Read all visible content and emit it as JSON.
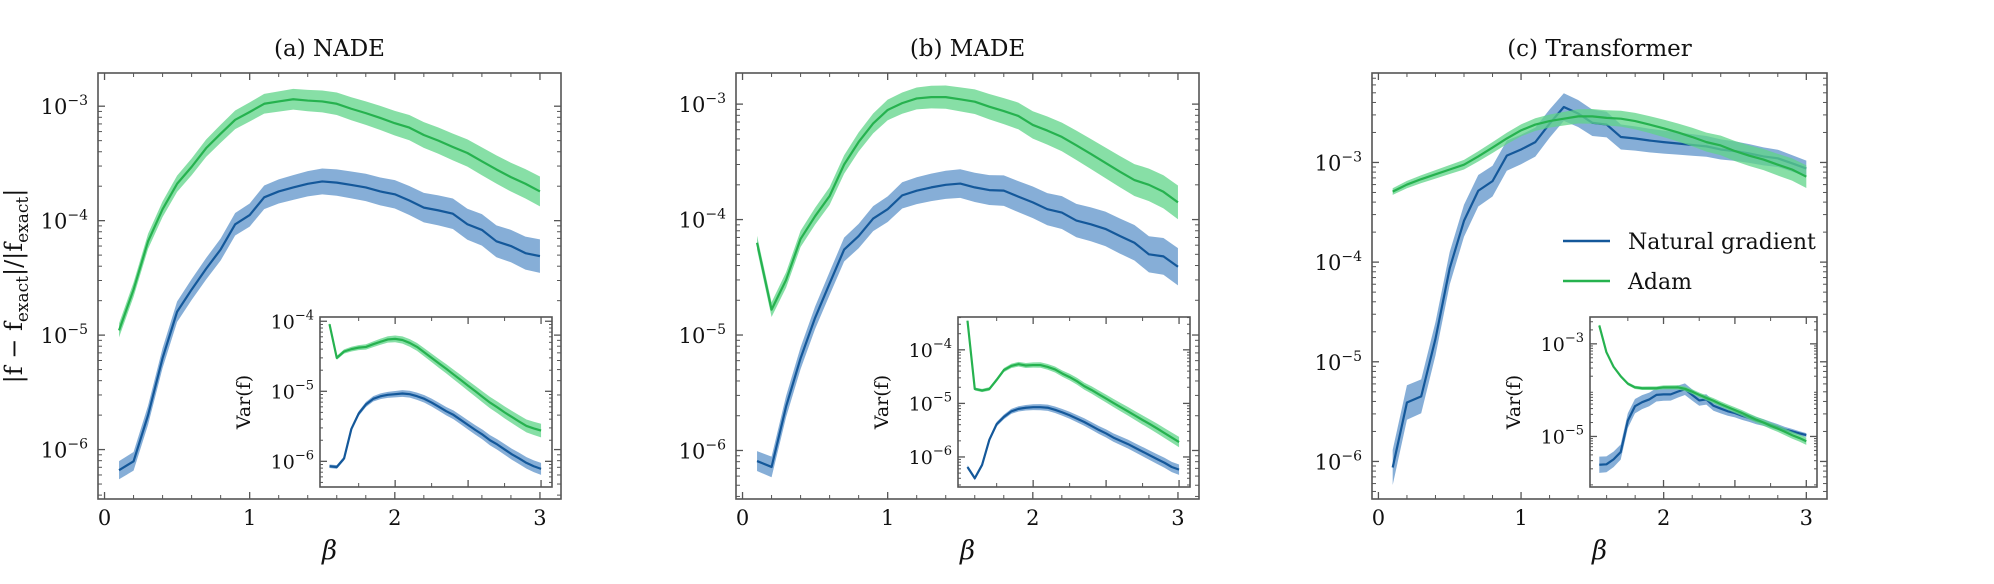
{
  "chart_data": [
    {
      "type": "line",
      "title": "(a) NADE",
      "xlabel": "β",
      "ylabel": "|f − f_exact|/|f_exact|",
      "yscale": "log",
      "xlim": [
        -0.045,
        3.145
      ],
      "ylim": [
        3.7e-07,
        0.00195
      ],
      "xticks": [
        0,
        1,
        2,
        3
      ],
      "yticks": [
        1e-06,
        1e-05,
        0.0001,
        0.001
      ],
      "yticklabels": [
        {
          "base": "10",
          "exp": "−6"
        },
        {
          "base": "10",
          "exp": "−5"
        },
        {
          "base": "10",
          "exp": "−4"
        },
        {
          "base": "10",
          "exp": "−3"
        }
      ],
      "x": [
        0.1,
        0.2,
        0.3,
        0.4,
        0.5,
        0.6,
        0.7,
        0.8,
        0.9,
        1.0,
        1.1,
        1.2,
        1.3,
        1.4,
        1.5,
        1.6,
        1.7,
        1.8,
        1.9,
        2.0,
        2.1,
        2.2,
        2.3,
        2.4,
        2.5,
        2.6,
        2.7,
        2.8,
        2.9,
        3.0
      ],
      "series": [
        {
          "key": "ng",
          "values": [
            6.6e-07,
            7.9e-07,
            2e-06,
            6.3e-06,
            1.6e-05,
            2.5e-05,
            3.8e-05,
            5.6e-05,
            9.3e-05,
            0.000112,
            0.00016,
            0.00018,
            0.000195,
            0.00021,
            0.00022,
            0.000215,
            0.000205,
            0.000195,
            0.00018,
            0.00017,
            0.00015,
            0.00013,
            0.000123,
            0.000115,
            9.3e-05,
            8.3e-05,
            6.6e-05,
            6e-05,
            5.2e-05,
            4.9e-05
          ],
          "band_factor": [
            1.2,
            1.4
          ]
        },
        {
          "key": "adam",
          "values": [
            1.1e-05,
            2.5e-05,
            6.6e-05,
            0.000126,
            0.00021,
            0.000295,
            0.00043,
            0.000575,
            0.00076,
            0.00089,
            0.00105,
            0.0011,
            0.00115,
            0.00112,
            0.0011,
            0.00105,
            0.00095,
            0.00087,
            0.00079,
            0.00071,
            0.00065,
            0.00056,
            0.0005,
            0.00044,
            0.00039,
            0.00033,
            0.00028,
            0.00024,
            0.00021,
            0.00018
          ],
          "band_factor": [
            1.15,
            1.35
          ]
        }
      ],
      "inset": {
        "ylabel": "Var(f)",
        "yscale": "log",
        "xlim": [
          -0.03,
          3.15
        ],
        "ylim": [
          4.3e-07,
          0.000115
        ],
        "xticks_major": [
          1,
          2,
          3
        ],
        "xticks_minor": [
          0.5,
          1.5,
          2.5
        ],
        "yticks": [
          1e-06,
          1e-05,
          0.0001
        ],
        "yticklabels": [
          {
            "base": "10",
            "exp": "−6"
          },
          {
            "base": "10",
            "exp": "−5"
          },
          {
            "base": "10",
            "exp": "−4"
          }
        ],
        "series": [
          {
            "key": "ng",
            "values": [
              8.5e-07,
              8.3e-07,
              1.1e-06,
              2.9e-06,
              4.8e-06,
              6.5e-06,
              7.8e-06,
              8.5e-06,
              8.9e-06,
              9.1e-06,
              9.3e-06,
              9.1e-06,
              8.5e-06,
              7.8e-06,
              6.9e-06,
              6e-06,
              5.2e-06,
              4.6e-06,
              3.9e-06,
              3.3e-06,
              2.8e-06,
              2.4e-06,
              2e-06,
              1.74e-06,
              1.48e-06,
              1.26e-06,
              1.1e-06,
              9.5e-07,
              8.5e-07,
              7.8e-07
            ],
            "band_factor": [
              1.06,
              1.22
            ]
          },
          {
            "key": "adam",
            "values": [
              9.1e-05,
              3e-05,
              3.7e-05,
              4e-05,
              4.2e-05,
              4.3e-05,
              4.7e-05,
              5.1e-05,
              5.5e-05,
              5.6e-05,
              5.4e-05,
              4.9e-05,
              4.3e-05,
              3.6e-05,
              3e-05,
              2.5e-05,
              2.1e-05,
              1.74e-05,
              1.45e-05,
              1.2e-05,
              1e-05,
              8.3e-06,
              6.9e-06,
              5.9e-06,
              5e-06,
              4.3e-06,
              3.7e-06,
              3.2e-06,
              2.95e-06,
              2.75e-06
            ],
            "band_factor": [
              1.06,
              1.25
            ]
          }
        ]
      }
    },
    {
      "type": "line",
      "title": "(b) MADE",
      "xlabel": "β",
      "yscale": "log",
      "xlim": [
        -0.045,
        3.145
      ],
      "ylim": [
        3.8e-07,
        0.00186
      ],
      "xticks": [
        0,
        1,
        2,
        3
      ],
      "yticks": [
        1e-06,
        1e-05,
        0.0001,
        0.001
      ],
      "yticklabels": [
        {
          "base": "10",
          "exp": "−6"
        },
        {
          "base": "10",
          "exp": "−5"
        },
        {
          "base": "10",
          "exp": "−4"
        },
        {
          "base": "10",
          "exp": "−3"
        }
      ],
      "x": [
        0.1,
        0.2,
        0.3,
        0.4,
        0.5,
        0.6,
        0.7,
        0.8,
        0.9,
        1.0,
        1.1,
        1.2,
        1.3,
        1.4,
        1.5,
        1.6,
        1.7,
        1.8,
        1.9,
        2.0,
        2.1,
        2.2,
        2.3,
        2.4,
        2.5,
        2.6,
        2.7,
        2.8,
        2.9,
        3.0
      ],
      "series": [
        {
          "key": "ng",
          "values": [
            8.1e-07,
            7.2e-07,
            2.4e-06,
            6.3e-06,
            1.41e-05,
            2.8e-05,
            5.5e-05,
            7.2e-05,
            0.000102,
            0.000123,
            0.000162,
            0.000178,
            0.00019,
            0.0002,
            0.000205,
            0.00019,
            0.00018,
            0.000178,
            0.000158,
            0.000141,
            0.000123,
            0.000115,
            9.8e-05,
            9.1e-05,
            8.3e-05,
            7.2e-05,
            6.3e-05,
            5e-05,
            4.8e-05,
            3.9e-05
          ],
          "band_factor": [
            1.22,
            1.45
          ]
        },
        {
          "key": "adam",
          "values": [
            6.3e-05,
            1.66e-05,
            3e-05,
            6.8e-05,
            0.000107,
            0.00016,
            0.0003,
            0.00047,
            0.00068,
            0.00089,
            0.00102,
            0.00112,
            0.00115,
            0.00115,
            0.0011,
            0.00105,
            0.00095,
            0.00087,
            0.00079,
            0.00066,
            0.00059,
            0.00052,
            0.00044,
            0.00037,
            0.00031,
            0.00026,
            0.00022,
            0.0002,
            0.000174,
            0.000141
          ],
          "band_factor": [
            1.15,
            1.4
          ]
        }
      ],
      "inset": {
        "ylabel": "Var(f)",
        "yscale": "log",
        "xlim": [
          -0.03,
          3.15
        ],
        "ylim": [
          2.75e-07,
          0.00041
        ],
        "xticks_major": [
          1,
          2,
          3
        ],
        "xticks_minor": [
          0.5,
          1.5,
          2.5
        ],
        "yticks": [
          1e-06,
          1e-05,
          0.0001
        ],
        "yticklabels": [
          {
            "base": "10",
            "exp": "−6"
          },
          {
            "base": "10",
            "exp": "−5"
          },
          {
            "base": "10",
            "exp": "−4"
          }
        ],
        "series": [
          {
            "key": "ng",
            "values": [
              6.5e-07,
              4e-07,
              7.1e-07,
              2.1e-06,
              4.1e-06,
              5.6e-06,
              7.1e-06,
              7.9e-06,
              8.3e-06,
              8.5e-06,
              8.5e-06,
              8.3e-06,
              7.6e-06,
              6.8e-06,
              6e-06,
              5.2e-06,
              4.5e-06,
              3.8e-06,
              3.2e-06,
              2.75e-06,
              2.3e-06,
              2e-06,
              1.74e-06,
              1.48e-06,
              1.26e-06,
              1.07e-06,
              9.1e-07,
              7.8e-07,
              6.5e-07,
              5.8e-07
            ],
            "band_factor": [
              1.08,
              1.25
            ]
          },
          {
            "key": "adam",
            "values": [
              0.00035,
              1.86e-05,
              1.74e-05,
              1.86e-05,
              2.75e-05,
              4.2e-05,
              5e-05,
              5.4e-05,
              5.1e-05,
              5.2e-05,
              5.2e-05,
              4.8e-05,
              4.3e-05,
              3.6e-05,
              3.1e-05,
              2.6e-05,
              2.1e-05,
              1.78e-05,
              1.48e-05,
              1.23e-05,
              1.02e-05,
              8.5e-06,
              7.1e-06,
              5.9e-06,
              4.9e-06,
              4.1e-06,
              3.4e-06,
              2.8e-06,
              2.3e-06,
              1.9e-06
            ],
            "band_factor": [
              1.06,
              1.25
            ]
          }
        ]
      }
    },
    {
      "type": "line",
      "title": "(c) Transformer",
      "xlabel": "β",
      "yscale": "log",
      "xlim": [
        -0.045,
        3.145
      ],
      "ylim": [
        4.2e-07,
        0.0079
      ],
      "xticks": [
        0,
        1,
        2,
        3
      ],
      "yticks": [
        1e-06,
        1e-05,
        0.0001,
        0.001
      ],
      "yticklabels": [
        {
          "base": "10",
          "exp": "−6"
        },
        {
          "base": "10",
          "exp": "−5"
        },
        {
          "base": "10",
          "exp": "−4"
        },
        {
          "base": "10",
          "exp": "−3"
        }
      ],
      "legend": {
        "position": "center-right",
        "entries": [
          {
            "key": "ng",
            "label": "Natural gradient"
          },
          {
            "key": "adam",
            "label": "Adam"
          }
        ]
      },
      "x": [
        0.1,
        0.2,
        0.3,
        0.4,
        0.5,
        0.6,
        0.7,
        0.8,
        0.9,
        1.0,
        1.1,
        1.2,
        1.3,
        1.4,
        1.5,
        1.6,
        1.7,
        1.8,
        1.9,
        2.0,
        2.1,
        2.2,
        2.3,
        2.4,
        2.5,
        2.6,
        2.7,
        2.8,
        2.9,
        3.0
      ],
      "series": [
        {
          "key": "ng",
          "values": [
            8.7e-07,
            3.9e-06,
            4.5e-06,
            1.7e-05,
            8.7e-05,
            0.00026,
            0.00052,
            0.00065,
            0.00117,
            0.00135,
            0.0016,
            0.00245,
            0.0036,
            0.0031,
            0.0025,
            0.0024,
            0.0018,
            0.00174,
            0.00166,
            0.0016,
            0.00155,
            0.0015,
            0.00145,
            0.00135,
            0.0013,
            0.00123,
            0.00115,
            0.0011,
            0.00098,
            0.00087
          ],
          "band_factor": [
            1.5,
            1.2
          ]
        },
        {
          "key": "adam",
          "values": [
            0.00051,
            0.0006,
            0.00068,
            0.00076,
            0.00085,
            0.00095,
            0.00115,
            0.00141,
            0.00174,
            0.0021,
            0.0024,
            0.0026,
            0.00275,
            0.0029,
            0.0029,
            0.0028,
            0.00275,
            0.0026,
            0.0024,
            0.0022,
            0.002,
            0.0018,
            0.0016,
            0.00148,
            0.0013,
            0.00117,
            0.00107,
            0.00095,
            0.00085,
            0.00072
          ],
          "band_factor": [
            1.08,
            1.3
          ]
        }
      ],
      "inset": {
        "ylabel": "Var(f)",
        "yscale": "log",
        "xlim": [
          -0.03,
          3.15
        ],
        "ylim": [
          8.1e-07,
          0.0038
        ],
        "xticks_major": [
          1,
          2,
          3
        ],
        "xticks_minor": [
          0.5,
          1.5,
          2.5
        ],
        "yticks": [
          1e-05,
          0.001
        ],
        "yticklabels": [
          {
            "base": "10",
            "exp": "−5"
          },
          {
            "base": "10",
            "exp": "−3"
          }
        ],
        "series": [
          {
            "key": "ng",
            "values": [
              2.45e-06,
              2.5e-06,
              3.2e-06,
              4.6e-06,
              2.2e-05,
              4.5e-05,
              5.5e-05,
              6.3e-05,
              7.9e-05,
              8.1e-05,
              8.1e-05,
              9.3e-05,
              0.000105,
              7.9e-05,
              6e-05,
              6.3e-05,
              4.6e-05,
              4e-05,
              3.5e-05,
              3.2e-05,
              2.8e-05,
              2.5e-05,
              2.2e-05,
              2e-05,
              1.78e-05,
              1.6e-05,
              1.41e-05,
              1.29e-05,
              1.17e-05,
              1.07e-05
            ],
            "band_factor": [
              1.5,
              1.1
            ]
          },
          {
            "key": "adam",
            "values": [
              0.0025,
              0.00066,
              0.00032,
              0.0002,
              0.000138,
              0.000115,
              0.00011,
              0.00011,
              0.00011,
              0.000115,
              0.000115,
              0.000115,
              0.000107,
              9.3e-05,
              7.9e-05,
              6.8e-05,
              5.9e-05,
              5e-05,
              4.3e-05,
              3.7e-05,
              3.2e-05,
              2.7e-05,
              2.3e-05,
              2e-05,
              1.7e-05,
              1.48e-05,
              1.26e-05,
              1.07e-05,
              9.3e-06,
              7.9e-06
            ],
            "band_factor": [
              1.06,
              1.2
            ]
          }
        ]
      }
    }
  ],
  "colors": {
    "ng_line": "#14589a",
    "ng_band": "#5d93c9",
    "adam_line": "#26b24f",
    "adam_band": "#5fd488",
    "axes": "#555555"
  }
}
